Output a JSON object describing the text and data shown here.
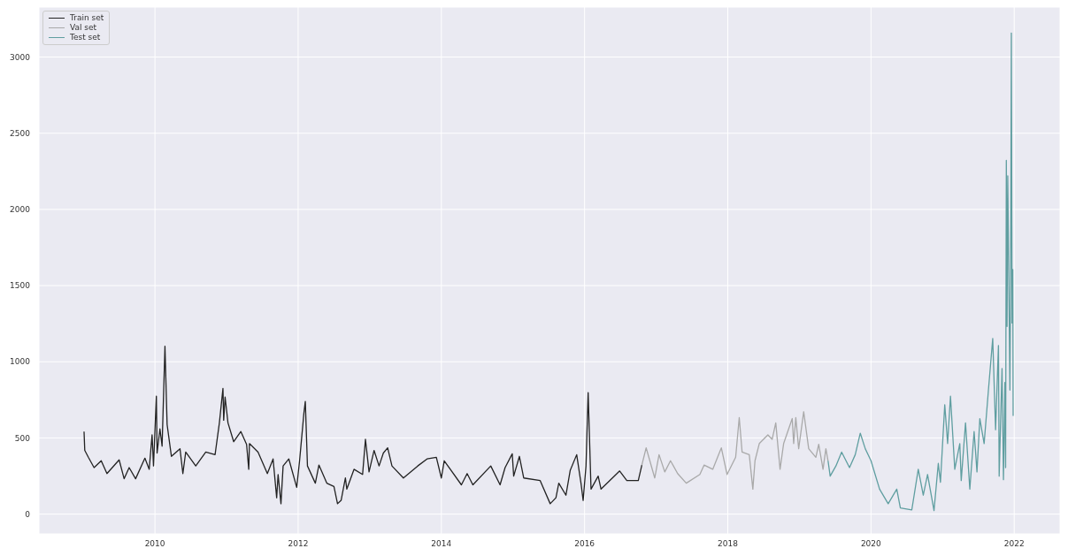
{
  "chart_data": {
    "type": "line",
    "xlim": [
      2008.38,
      2022.64
    ],
    "xticks": [
      2010,
      2012,
      2014,
      2016,
      2018,
      2020,
      2022
    ],
    "ylim": [
      -130,
      3328
    ],
    "yticks": [
      0,
      500,
      1000,
      1500,
      2000,
      2500,
      3000
    ],
    "grid": true,
    "legend": "top left",
    "line_style": "solid",
    "marker": "none",
    "series": [
      {
        "name": "Train set",
        "color": "#222222",
        "x": [
          2009.01,
          2009.02,
          2009.07,
          2009.15,
          2009.25,
          2009.33,
          2009.5,
          2009.57,
          2009.64,
          2009.73,
          2009.86,
          2009.92,
          2009.96,
          2009.98,
          2010.02,
          2010.03,
          2010.07,
          2010.1,
          2010.14,
          2010.17,
          2010.23,
          2010.35,
          2010.39,
          2010.43,
          2010.57,
          2010.71,
          2010.84,
          2010.9,
          2010.95,
          2010.96,
          2010.98,
          2011.0,
          2011.02,
          2011.1,
          2011.2,
          2011.28,
          2011.31,
          2011.32,
          2011.44,
          2011.57,
          2011.65,
          2011.7,
          2011.72,
          2011.76,
          2011.79,
          2011.87,
          2011.98,
          2012.02,
          2012.08,
          2012.1,
          2012.13,
          2012.24,
          2012.29,
          2012.4,
          2012.5,
          2012.55,
          2012.6,
          2012.66,
          2012.68,
          2012.78,
          2012.9,
          2012.94,
          2012.99,
          2013.06,
          2013.13,
          2013.19,
          2013.25,
          2013.31,
          2013.47,
          2013.67,
          2013.8,
          2013.93,
          2014.0,
          2014.04,
          2014.28,
          2014.36,
          2014.44,
          2014.69,
          2014.82,
          2014.89,
          2014.99,
          2015.01,
          2015.09,
          2015.15,
          2015.38,
          2015.52,
          2015.6,
          2015.64,
          2015.74,
          2015.8,
          2015.89,
          2015.95,
          2015.98,
          2016.02,
          2016.05,
          2016.09,
          2016.19,
          2016.23,
          2016.49,
          2016.59,
          2016.75,
          2016.8
        ],
        "values": [
          542,
          418,
          373,
          305,
          350,
          266,
          356,
          232,
          305,
          232,
          367,
          294,
          520,
          316,
          774,
          401,
          559,
          446,
          1102,
          588,
          379,
          429,
          266,
          407,
          316,
          407,
          390,
          599,
          825,
          616,
          768,
          684,
          599,
          475,
          542,
          458,
          294,
          463,
          407,
          266,
          362,
          107,
          260,
          68,
          316,
          362,
          175,
          350,
          661,
          740,
          316,
          203,
          322,
          203,
          181,
          68,
          90,
          237,
          164,
          294,
          260,
          491,
          277,
          418,
          316,
          401,
          435,
          316,
          237,
          316,
          362,
          373,
          237,
          350,
          192,
          266,
          192,
          316,
          192,
          305,
          396,
          249,
          379,
          237,
          220,
          68,
          107,
          203,
          124,
          288,
          390,
          203,
          90,
          316,
          797,
          164,
          249,
          164,
          283,
          220,
          220,
          322
        ]
      },
      {
        "name": "Val set",
        "color": "#a9a9a9",
        "x": [
          2016.8,
          2016.86,
          2016.98,
          2017.04,
          2017.12,
          2017.2,
          2017.3,
          2017.42,
          2017.61,
          2017.67,
          2017.79,
          2017.91,
          2017.99,
          2018.11,
          2018.16,
          2018.2,
          2018.3,
          2018.35,
          2018.38,
          2018.44,
          2018.56,
          2018.62,
          2018.67,
          2018.73,
          2018.78,
          2018.9,
          2018.92,
          2018.95,
          2018.99,
          2019.06,
          2019.13,
          2019.23,
          2019.27,
          2019.33,
          2019.37,
          2019.4
        ],
        "values": [
          322,
          435,
          237,
          390,
          277,
          350,
          266,
          203,
          260,
          322,
          294,
          435,
          260,
          373,
          633,
          407,
          390,
          164,
          350,
          463,
          520,
          491,
          599,
          294,
          463,
          627,
          463,
          633,
          429,
          672,
          429,
          373,
          458,
          294,
          429,
          350
        ]
      },
      {
        "name": "Test set",
        "color": "#5f9ea0",
        "x": [
          2019.4,
          2019.43,
          2019.51,
          2019.59,
          2019.7,
          2019.78,
          2019.85,
          2019.92,
          2020.0,
          2020.12,
          2020.24,
          2020.36,
          2020.41,
          2020.57,
          2020.66,
          2020.73,
          2020.79,
          2020.88,
          2020.94,
          2020.97,
          2021.03,
          2021.07,
          2021.11,
          2021.17,
          2021.24,
          2021.26,
          2021.32,
          2021.38,
          2021.44,
          2021.48,
          2021.52,
          2021.58,
          2021.64,
          2021.7,
          2021.74,
          2021.78,
          2021.79,
          2021.83,
          2021.85,
          2021.87,
          2021.88,
          2021.89,
          2021.9,
          2021.91,
          2021.94,
          2021.95,
          2021.96,
          2021.97,
          2021.98,
          2021.985
        ],
        "values": [
          350,
          249,
          316,
          407,
          305,
          390,
          531,
          429,
          350,
          164,
          68,
          164,
          40,
          28,
          294,
          124,
          260,
          23,
          333,
          209,
          718,
          463,
          774,
          294,
          463,
          220,
          599,
          164,
          542,
          277,
          627,
          463,
          814,
          1153,
          554,
          1107,
          249,
          955,
          226,
          864,
          305,
          2322,
          1232,
          2220,
          814,
          1582,
          3158,
          1254,
          1605,
          644
        ]
      }
    ]
  }
}
